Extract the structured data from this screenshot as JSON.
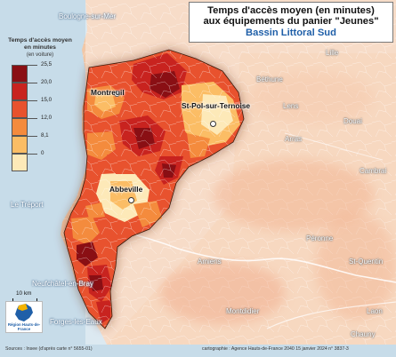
{
  "title": {
    "line1": "Temps d'accès moyen (en minutes)",
    "line2": "aux équipements du panier \"Jeunes\"",
    "line3": "Bassin Littoral Sud"
  },
  "legend": {
    "title": "Temps d'accès moyen en minutes",
    "subtitle": "(en voiture)",
    "levels": [
      "25,5",
      "20,0",
      "15,0",
      "12,0",
      "8,1",
      "0"
    ],
    "colors": [
      "#8a0f14",
      "#c8231f",
      "#e8522e",
      "#f48b3d",
      "#fbbd65",
      "#fde9b8"
    ]
  },
  "places": {
    "boulogne": "Boulogne-sur-Mer",
    "montreuil": "Montreuil",
    "stpol": "St-Pol-sur-Ternoise",
    "abbeville": "Abbeville",
    "letreport": "Le Tréport",
    "neufchatel": "Neufchâtel-en-Bray",
    "forges": "Forges-les-Eaux",
    "lille": "Lille",
    "bethune": "Béthune",
    "lens": "Lens",
    "douai": "Douai",
    "arras": "Arras",
    "cambrai": "Cambrai",
    "peronne": "Péronne",
    "amiens": "Amiens",
    "stquentin": "St-Quentin",
    "montdidier": "Montdidier",
    "laon": "Laon",
    "chauny": "Chauny"
  },
  "scale": {
    "label": "10 km"
  },
  "logo": {
    "text": "Région Hauts-de-France"
  },
  "footer": {
    "sources": "Sources : Insee (d'après carte n° 5655-01)",
    "credit": "cartographie : Agence Hauts-de-France 2040     15 janvier 2024 n° 3837-3"
  }
}
